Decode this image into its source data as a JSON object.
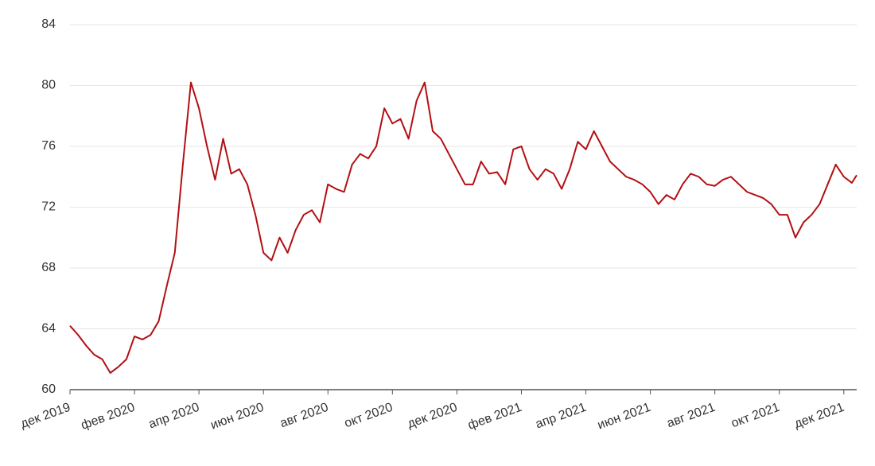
{
  "chart_data": {
    "type": "line",
    "x": [
      0,
      0.25,
      0.5,
      0.75,
      1,
      1.25,
      1.5,
      1.75,
      2,
      2.25,
      2.5,
      2.75,
      3,
      3.25,
      3.5,
      3.75,
      4,
      4.25,
      4.5,
      4.75,
      5,
      5.25,
      5.5,
      5.75,
      6,
      6.25,
      6.5,
      6.75,
      7,
      7.25,
      7.5,
      7.75,
      8,
      8.25,
      8.5,
      8.75,
      9,
      9.25,
      9.5,
      9.75,
      10,
      10.25,
      10.5,
      10.75,
      11,
      11.25,
      11.5,
      11.75,
      12,
      12.25,
      12.5,
      12.75,
      13,
      13.25,
      13.5,
      13.75,
      14,
      14.25,
      14.5,
      14.75,
      15,
      15.25,
      15.5,
      15.75,
      16,
      16.25,
      16.5,
      16.75,
      17,
      17.25,
      17.5,
      17.75,
      18,
      18.25,
      18.5,
      18.75,
      19,
      19.25,
      19.5,
      19.75,
      20,
      20.25,
      20.5,
      20.75,
      21,
      21.25,
      21.5,
      21.75,
      22,
      22.25,
      22.5,
      22.75,
      23,
      23.25,
      23.5,
      23.75,
      24,
      24.25,
      24.4
    ],
    "series": [
      {
        "color": "#b30f12",
        "values": [
          64.2,
          63.6,
          62.9,
          62.3,
          62.0,
          61.1,
          61.5,
          62.0,
          63.5,
          63.3,
          63.6,
          64.5,
          66.8,
          69.0,
          74.8,
          80.2,
          78.5,
          76.0,
          73.8,
          76.5,
          74.2,
          74.5,
          73.5,
          71.5,
          69.0,
          68.5,
          70.0,
          69.0,
          70.5,
          71.5,
          71.8,
          71.0,
          73.5,
          73.2,
          73.0,
          74.8,
          75.5,
          75.2,
          76.0,
          78.5,
          77.5,
          77.8,
          76.5,
          79.0,
          80.2,
          77.0,
          76.5,
          75.5,
          74.5,
          73.5,
          73.5,
          75.0,
          74.2,
          74.3,
          73.5,
          75.8,
          76.0,
          74.5,
          73.8,
          74.5,
          74.2,
          73.2,
          74.5,
          76.3,
          75.8,
          77.0,
          76.0,
          75.0,
          74.5,
          74.0,
          73.8,
          73.5,
          73.0,
          72.2,
          72.8,
          72.5,
          73.5,
          74.2,
          74.0,
          73.5,
          73.4,
          73.8,
          74.0,
          73.5,
          73.0,
          72.8,
          72.6,
          72.2,
          71.5,
          71.5,
          70.0,
          71.0,
          71.5,
          72.2,
          73.5,
          74.8,
          74.0,
          73.6,
          74.1
        ]
      }
    ],
    "xlim": [
      0,
      24.4
    ],
    "xticks": [
      {
        "value": 0,
        "label": "дек 2019"
      },
      {
        "value": 2,
        "label": "фев 2020"
      },
      {
        "value": 4,
        "label": "апр 2020"
      },
      {
        "value": 6,
        "label": "июн 2020"
      },
      {
        "value": 8,
        "label": "авг 2020"
      },
      {
        "value": 10,
        "label": "окт 2020"
      },
      {
        "value": 12,
        "label": "дек 2020"
      },
      {
        "value": 14,
        "label": "фев 2021"
      },
      {
        "value": 16,
        "label": "апр 2021"
      },
      {
        "value": 18,
        "label": "июн 2021"
      },
      {
        "value": 20,
        "label": "авг 2021"
      },
      {
        "value": 22,
        "label": "окт 2021"
      },
      {
        "value": 24,
        "label": "дек 2021"
      }
    ],
    "ylim": [
      60,
      84
    ],
    "yticks": [
      60,
      64,
      68,
      72,
      76,
      80,
      84
    ],
    "grid": true
  }
}
